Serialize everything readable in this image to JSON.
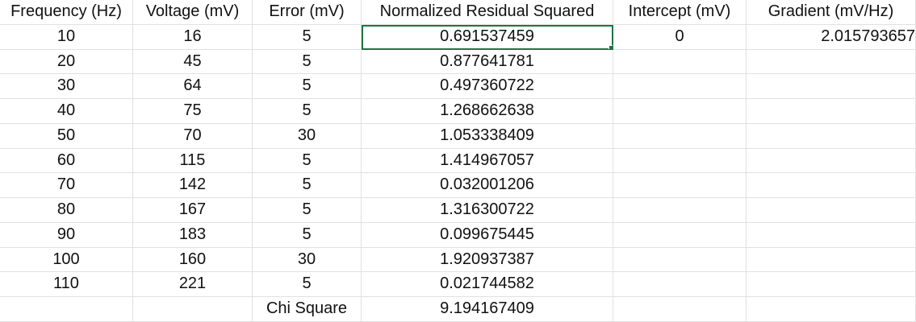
{
  "headers": [
    "Frequency (Hz)",
    "Voltage (mV)",
    "Error (mV)",
    "Normalized Residual Squared",
    "Intercept (mV)",
    "Gradient (mV/Hz)"
  ],
  "rows": [
    [
      "10",
      "16",
      "5",
      "0.691537459",
      "0",
      "2.015793657"
    ],
    [
      "20",
      "45",
      "5",
      "0.877641781",
      "",
      ""
    ],
    [
      "30",
      "64",
      "5",
      "0.497360722",
      "",
      ""
    ],
    [
      "40",
      "75",
      "5",
      "1.268662638",
      "",
      ""
    ],
    [
      "50",
      "70",
      "30",
      "1.053338409",
      "",
      ""
    ],
    [
      "60",
      "115",
      "5",
      "1.414967057",
      "",
      ""
    ],
    [
      "70",
      "142",
      "5",
      "0.032001206",
      "",
      ""
    ],
    [
      "80",
      "167",
      "5",
      "1.316300722",
      "",
      ""
    ],
    [
      "90",
      "183",
      "5",
      "0.099675445",
      "",
      ""
    ],
    [
      "100",
      "160",
      "30",
      "1.920937387",
      "",
      ""
    ],
    [
      "110",
      "221",
      "5",
      "0.021744582",
      "",
      ""
    ],
    [
      "",
      "",
      "Chi Square",
      "9.194167409",
      "",
      ""
    ]
  ],
  "selected_cell": {
    "row": 0,
    "col": 3
  },
  "accent_color": "#217346"
}
